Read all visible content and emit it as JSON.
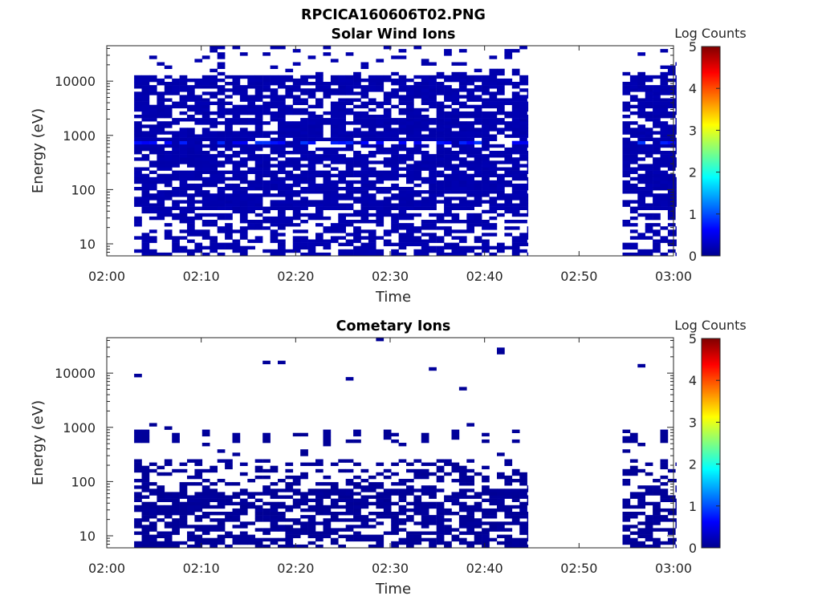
{
  "figure_title": "RPCICA160606T02.PNG",
  "chart_data": [
    {
      "type": "heatmap",
      "title": "Solar Wind Ions",
      "xlabel": "Time",
      "ylabel": "Energy (eV)",
      "x_ticks": [
        "02:00",
        "02:10",
        "02:20",
        "02:30",
        "02:40",
        "02:50",
        "03:00"
      ],
      "x_range_minutes": [
        0,
        60
      ],
      "y_scale": "log",
      "y_ticks": [
        10,
        100,
        1000,
        10000
      ],
      "y_tick_labels": [
        "10",
        "100",
        "1000",
        "10000"
      ],
      "y_range_eV": [
        6,
        45000
      ],
      "colorbar_label": "Log Counts",
      "colorbar_ticks": [
        "0",
        "1",
        "2",
        "3",
        "4",
        "5"
      ],
      "clim": [
        0,
        5
      ],
      "colormap": "jet",
      "data_intervals_minutes": [
        [
          2.9,
          44.6
        ],
        [
          54.6,
          60.3
        ]
      ],
      "typical_log_counts": 0.2,
      "peak_energy_eV": 750,
      "peak_log_counts": 0.9,
      "background_color": "#ffffff"
    },
    {
      "type": "heatmap",
      "title": "Cometary Ions",
      "xlabel": "Time",
      "ylabel": "Energy (eV)",
      "x_ticks": [
        "02:00",
        "02:10",
        "02:20",
        "02:30",
        "02:40",
        "02:50",
        "03:00"
      ],
      "x_range_minutes": [
        0,
        60
      ],
      "y_scale": "log",
      "y_ticks": [
        10,
        100,
        1000,
        10000
      ],
      "y_tick_labels": [
        "10",
        "100",
        "1000",
        "10000"
      ],
      "y_range_eV": [
        6,
        45000
      ],
      "colorbar_label": "Log Counts",
      "colorbar_ticks": [
        "0",
        "1",
        "2",
        "3",
        "4",
        "5"
      ],
      "clim": [
        0,
        5
      ],
      "colormap": "jet",
      "data_intervals_minutes": [
        [
          2.9,
          44.6
        ],
        [
          54.6,
          60.3
        ]
      ],
      "typical_log_counts": 0.1,
      "background_color": "#ffffff"
    }
  ]
}
